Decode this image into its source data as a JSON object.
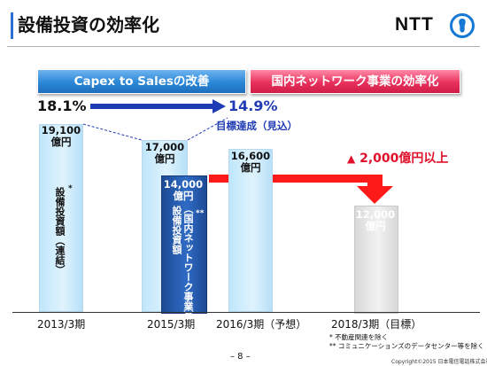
{
  "header": {
    "title": "設備投資の効率化",
    "logo_text": "NTT"
  },
  "banners": {
    "left": "Capex to Salesの改善",
    "right": "国内ネットワーク事業の効率化"
  },
  "ratios": {
    "start": "18.1%",
    "end": "14.9%",
    "end_note": "目標達成（見込）"
  },
  "reduction_note": "2,000億円以上",
  "bars": [
    {
      "value_line1": "19,100",
      "value_line2": "億円",
      "vertical_label": "設備投資額（連結）",
      "marker": "*"
    },
    {
      "value_line1": "17,000",
      "value_line2": "億円"
    },
    {
      "value_line1": "14,000",
      "value_line2": "億円",
      "vertical_label_1": "設備投資額",
      "vertical_label_2": "（国内ネットワーク事業）",
      "marker": "**"
    },
    {
      "value_line1": "16,600",
      "value_line2": "億円"
    },
    {
      "value_line1": "12,000",
      "value_line2": "億円"
    }
  ],
  "x_labels": [
    "2013/3期",
    "2015/3期",
    "2016/3期（予想）",
    "2018/3期（目標）"
  ],
  "footnotes": [
    "*   不動産関連を除く",
    "**  コミュニケーションズのデータセンター等を除く"
  ],
  "page_number": "– 8 –",
  "copyright": "Copyright©2015 日本電信電話株式会社",
  "colors": {
    "accent_blue": "#1f3cb4",
    "accent_red": "#e0102a",
    "banner_blue": "#2a86d6",
    "banner_pink": "#e8305c"
  }
}
